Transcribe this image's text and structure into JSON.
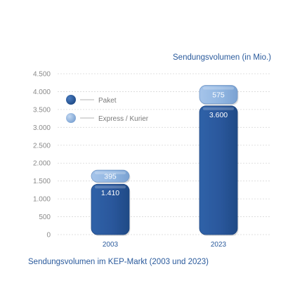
{
  "chart_data": {
    "type": "bar",
    "stacked": true,
    "categories": [
      "2003",
      "2023"
    ],
    "series": [
      {
        "name": "Paket",
        "values": [
          1410,
          3600
        ],
        "labels": [
          "1.410",
          "3.600"
        ],
        "color": "#2a579c"
      },
      {
        "name": "Express / Kurier",
        "values": [
          395,
          575
        ],
        "labels": [
          "395",
          "575"
        ],
        "color": "#8fb4e0"
      }
    ],
    "ylabel": "Sendungsvolumen (in Mio.)",
    "caption": "Sendungsvolumen im KEP-Markt (2003 und 2023)",
    "ylim": [
      0,
      4500
    ],
    "yticks": [
      {
        "value": 0,
        "label": "0"
      },
      {
        "value": 500,
        "label": "500"
      },
      {
        "value": 1000,
        "label": "1.000"
      },
      {
        "value": 1500,
        "label": "1.500"
      },
      {
        "value": 2000,
        "label": "2.000"
      },
      {
        "value": 2500,
        "label": "2.500"
      },
      {
        "value": 3000,
        "label": "3.000"
      },
      {
        "value": 3500,
        "label": "3.500"
      },
      {
        "value": 4000,
        "label": "4.000"
      },
      {
        "value": 4500,
        "label": "4.500"
      }
    ],
    "grid": true,
    "legend": "top-left"
  }
}
